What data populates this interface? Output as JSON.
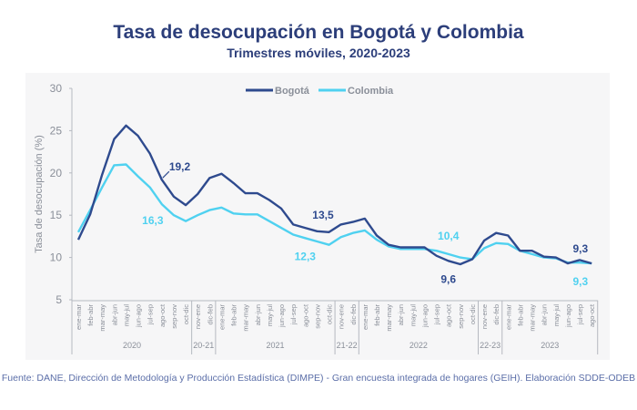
{
  "chart_data": {
    "type": "line",
    "title": "Tasa de desocupación en Bogotá y Colombia",
    "subtitle": "Trimestres móviles, 2020-2023",
    "ylabel": "Tasa de desocupación (%)",
    "xlabel": "",
    "ylim": [
      5,
      30
    ],
    "yticks": [
      5,
      10,
      15,
      20,
      25,
      30
    ],
    "legend": "top-center",
    "grid": false,
    "categories": [
      "ene-mar",
      "feb-abr",
      "mar-may",
      "abr-jun",
      "may-jul",
      "jun-ago",
      "jul-sep",
      "ago-oct",
      "sep-nov",
      "oct-dic",
      "nov-ene",
      "dic-feb",
      "ene-mar",
      "feb-abr",
      "mar-may",
      "abr-jun",
      "may-jul",
      "jun-ago",
      "jul-sep",
      "ago-oct",
      "sep-nov",
      "oct-dic",
      "nov-ene",
      "dic-feb",
      "ene-mar",
      "feb-abr",
      "mar-may",
      "abr-jun",
      "may-jul",
      "jun-ago",
      "jul-sep",
      "ago-oct",
      "sep-nov",
      "oct-dic",
      "nov-ene",
      "dic-feb",
      "ene-mar",
      "feb-abr",
      "mar-may",
      "abr-jun",
      "may-jul",
      "jun-ago",
      "jul-sep",
      "ago-oct"
    ],
    "groups": [
      {
        "label": "2020",
        "count": 10
      },
      {
        "label": "20-21",
        "count": 2
      },
      {
        "label": "2021",
        "count": 10
      },
      {
        "label": "21-22",
        "count": 2
      },
      {
        "label": "2022",
        "count": 10
      },
      {
        "label": "22-23",
        "count": 2
      },
      {
        "label": "2023",
        "count": 8
      }
    ],
    "series": [
      {
        "name": "Bogotá",
        "color": "#2e4a8e",
        "values": [
          12.1,
          15.1,
          19.8,
          24.0,
          25.6,
          24.4,
          22.3,
          19.2,
          17.2,
          16.2,
          17.5,
          19.4,
          19.9,
          18.8,
          17.6,
          17.6,
          16.8,
          15.8,
          13.9,
          13.5,
          13.1,
          13.0,
          13.9,
          14.2,
          14.6,
          12.6,
          11.5,
          11.2,
          11.2,
          11.2,
          10.2,
          9.6,
          9.2,
          9.8,
          12.0,
          12.9,
          12.6,
          10.8,
          10.8,
          10.1,
          10.0,
          9.3,
          9.7,
          9.3
        ]
      },
      {
        "name": "Colombia",
        "color": "#4fd1f0",
        "values": [
          13.0,
          15.6,
          18.3,
          20.9,
          21.0,
          19.6,
          18.3,
          16.3,
          15.0,
          14.3,
          15.0,
          15.6,
          15.9,
          15.2,
          15.1,
          15.1,
          14.3,
          13.5,
          12.7,
          12.3,
          11.9,
          11.5,
          12.4,
          12.9,
          13.2,
          12.1,
          11.3,
          11.0,
          11.0,
          11.0,
          10.8,
          10.4,
          10.0,
          9.8,
          11.1,
          11.7,
          11.6,
          10.8,
          10.4,
          10.0,
          9.9,
          9.4,
          9.4,
          9.3
        ]
      }
    ],
    "annotations": [
      {
        "series": "Bogotá",
        "index": 7,
        "text": "19,2"
      },
      {
        "series": "Colombia",
        "index": 7,
        "text": "16,3"
      },
      {
        "series": "Bogotá",
        "index": 19,
        "text": "13,5"
      },
      {
        "series": "Colombia",
        "index": 19,
        "text": "12,3"
      },
      {
        "series": "Bogotá",
        "index": 31,
        "text": "9,6"
      },
      {
        "series": "Colombia",
        "index": 31,
        "text": "10,4"
      },
      {
        "series": "Bogotá",
        "index": 43,
        "text": "9,3"
      },
      {
        "series": "Colombia",
        "index": 43,
        "text": "9,3"
      }
    ]
  },
  "footer": "Fuente: DANE, Dirección de Metodología y Producción Estadística (DIMPE) - Gran encuesta integrada de hogares (GEIH). Elaboración SDDE-ODEB"
}
